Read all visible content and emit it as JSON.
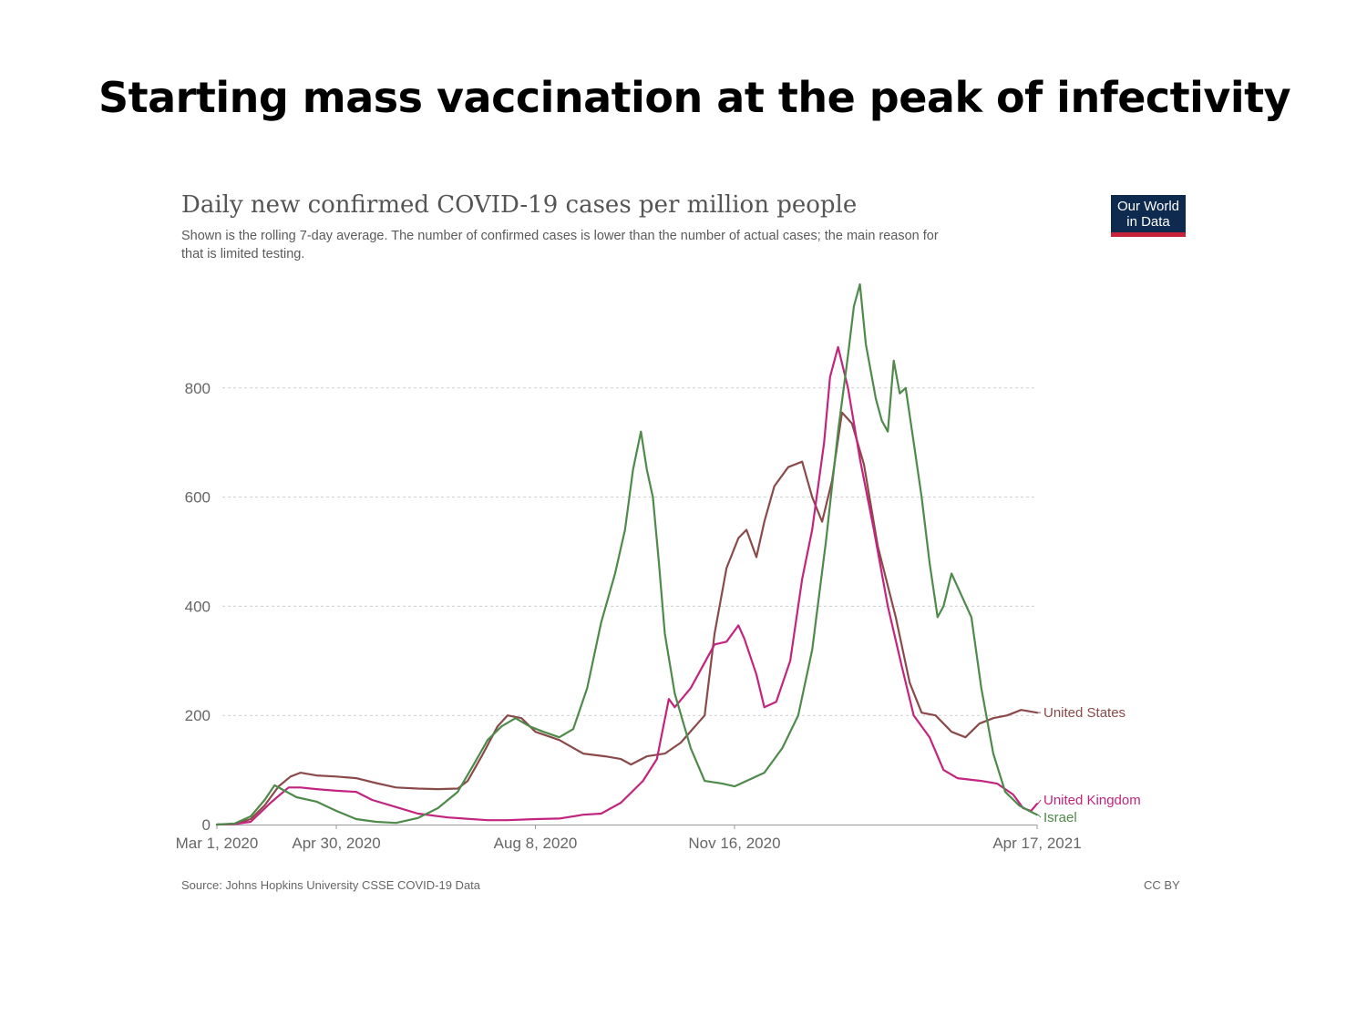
{
  "slide": {
    "title": "Starting mass vaccination at the peak of infectivity"
  },
  "chart_data": {
    "type": "line",
    "title": "Daily new confirmed COVID-19 cases per million people",
    "subtitle_line1": "Shown is the rolling 7-day average. The number of confirmed cases is lower than the number of actual cases; the main reason for",
    "subtitle_line2": "that is limited testing.",
    "source": "Source: Johns Hopkins University CSSE COVID-19 Data",
    "license": "CC BY",
    "logo": [
      "Our World",
      "in Data"
    ],
    "x_ticks": [
      "Mar 1, 2020",
      "Apr 30, 2020",
      "Aug 8, 2020",
      "Nov 16, 2020",
      "Apr 17, 2021"
    ],
    "x_tick_dates": [
      "2020-03-01",
      "2020-04-30",
      "2020-08-08",
      "2020-11-16",
      "2021-04-17"
    ],
    "xlim": [
      "2020-03-01",
      "2021-04-17"
    ],
    "y_ticks": [
      0,
      200,
      400,
      600,
      800
    ],
    "ylim": [
      0,
      1000
    ],
    "grid": true,
    "series": [
      {
        "name": "United States",
        "color": "#8b4a4a",
        "points": [
          [
            "2020-03-01",
            0
          ],
          [
            "2020-03-10",
            1
          ],
          [
            "2020-03-18",
            10
          ],
          [
            "2020-03-25",
            35
          ],
          [
            "2020-04-01",
            70
          ],
          [
            "2020-04-07",
            88
          ],
          [
            "2020-04-12",
            95
          ],
          [
            "2020-04-20",
            90
          ],
          [
            "2020-04-30",
            88
          ],
          [
            "2020-05-10",
            85
          ],
          [
            "2020-05-20",
            76
          ],
          [
            "2020-05-30",
            68
          ],
          [
            "2020-06-10",
            66
          ],
          [
            "2020-06-20",
            65
          ],
          [
            "2020-06-30",
            66
          ],
          [
            "2020-07-05",
            80
          ],
          [
            "2020-07-12",
            125
          ],
          [
            "2020-07-20",
            180
          ],
          [
            "2020-07-25",
            200
          ],
          [
            "2020-08-01",
            195
          ],
          [
            "2020-08-08",
            170
          ],
          [
            "2020-08-20",
            155
          ],
          [
            "2020-09-01",
            130
          ],
          [
            "2020-09-12",
            125
          ],
          [
            "2020-09-20",
            120
          ],
          [
            "2020-09-25",
            110
          ],
          [
            "2020-10-03",
            125
          ],
          [
            "2020-10-12",
            130
          ],
          [
            "2020-10-20",
            150
          ],
          [
            "2020-11-01",
            200
          ],
          [
            "2020-11-06",
            350
          ],
          [
            "2020-11-12",
            470
          ],
          [
            "2020-11-18",
            525
          ],
          [
            "2020-11-22",
            540
          ],
          [
            "2020-11-27",
            490
          ],
          [
            "2020-12-01",
            555
          ],
          [
            "2020-12-06",
            620
          ],
          [
            "2020-12-13",
            655
          ],
          [
            "2020-12-20",
            665
          ],
          [
            "2020-12-25",
            600
          ],
          [
            "2020-12-30",
            555
          ],
          [
            "2021-01-04",
            630
          ],
          [
            "2021-01-09",
            755
          ],
          [
            "2021-01-14",
            735
          ],
          [
            "2021-01-20",
            660
          ],
          [
            "2021-01-27",
            510
          ],
          [
            "2021-02-05",
            380
          ],
          [
            "2021-02-12",
            260
          ],
          [
            "2021-02-18",
            205
          ],
          [
            "2021-02-25",
            200
          ],
          [
            "2021-03-05",
            170
          ],
          [
            "2021-03-12",
            160
          ],
          [
            "2021-03-19",
            185
          ],
          [
            "2021-03-26",
            195
          ],
          [
            "2021-04-02",
            200
          ],
          [
            "2021-04-09",
            210
          ],
          [
            "2021-04-17",
            205
          ]
        ]
      },
      {
        "name": "United Kingdom",
        "color": "#c2247e",
        "points": [
          [
            "2020-03-01",
            0
          ],
          [
            "2020-03-10",
            1
          ],
          [
            "2020-03-18",
            5
          ],
          [
            "2020-03-28",
            40
          ],
          [
            "2020-04-06",
            68
          ],
          [
            "2020-04-12",
            68
          ],
          [
            "2020-04-20",
            65
          ],
          [
            "2020-04-30",
            62
          ],
          [
            "2020-05-10",
            60
          ],
          [
            "2020-05-18",
            45
          ],
          [
            "2020-05-30",
            32
          ],
          [
            "2020-06-10",
            20
          ],
          [
            "2020-06-25",
            13
          ],
          [
            "2020-07-15",
            8
          ],
          [
            "2020-07-25",
            8
          ],
          [
            "2020-08-08",
            10
          ],
          [
            "2020-08-20",
            11
          ],
          [
            "2020-09-01",
            18
          ],
          [
            "2020-09-10",
            20
          ],
          [
            "2020-09-20",
            40
          ],
          [
            "2020-10-01",
            80
          ],
          [
            "2020-10-08",
            120
          ],
          [
            "2020-10-14",
            230
          ],
          [
            "2020-10-17",
            215
          ],
          [
            "2020-10-25",
            250
          ],
          [
            "2020-10-31",
            290
          ],
          [
            "2020-11-06",
            330
          ],
          [
            "2020-11-12",
            335
          ],
          [
            "2020-11-18",
            365
          ],
          [
            "2020-11-21",
            340
          ],
          [
            "2020-11-27",
            275
          ],
          [
            "2020-12-01",
            215
          ],
          [
            "2020-12-07",
            225
          ],
          [
            "2020-12-14",
            300
          ],
          [
            "2020-12-20",
            450
          ],
          [
            "2020-12-25",
            540
          ],
          [
            "2020-12-31",
            700
          ],
          [
            "2021-01-03",
            820
          ],
          [
            "2021-01-07",
            875
          ],
          [
            "2021-01-12",
            800
          ],
          [
            "2021-01-18",
            670
          ],
          [
            "2021-01-25",
            540
          ],
          [
            "2021-02-01",
            400
          ],
          [
            "2021-02-08",
            290
          ],
          [
            "2021-02-14",
            200
          ],
          [
            "2021-02-22",
            160
          ],
          [
            "2021-03-01",
            100
          ],
          [
            "2021-03-08",
            85
          ],
          [
            "2021-03-20",
            80
          ],
          [
            "2021-03-28",
            75
          ],
          [
            "2021-04-05",
            55
          ],
          [
            "2021-04-10",
            30
          ],
          [
            "2021-04-14",
            25
          ],
          [
            "2021-04-17",
            38
          ]
        ]
      },
      {
        "name": "Israel",
        "color": "#4e8a4a",
        "points": [
          [
            "2020-03-01",
            0
          ],
          [
            "2020-03-10",
            2
          ],
          [
            "2020-03-18",
            15
          ],
          [
            "2020-03-25",
            45
          ],
          [
            "2020-03-30",
            72
          ],
          [
            "2020-04-04",
            62
          ],
          [
            "2020-04-10",
            50
          ],
          [
            "2020-04-20",
            42
          ],
          [
            "2020-04-30",
            25
          ],
          [
            "2020-05-10",
            10
          ],
          [
            "2020-05-20",
            5
          ],
          [
            "2020-05-30",
            3
          ],
          [
            "2020-06-10",
            12
          ],
          [
            "2020-06-20",
            30
          ],
          [
            "2020-06-30",
            60
          ],
          [
            "2020-07-08",
            110
          ],
          [
            "2020-07-15",
            155
          ],
          [
            "2020-07-22",
            180
          ],
          [
            "2020-07-29",
            195
          ],
          [
            "2020-08-05",
            180
          ],
          [
            "2020-08-12",
            170
          ],
          [
            "2020-08-20",
            160
          ],
          [
            "2020-08-27",
            175
          ],
          [
            "2020-09-03",
            250
          ],
          [
            "2020-09-10",
            370
          ],
          [
            "2020-09-17",
            460
          ],
          [
            "2020-09-22",
            540
          ],
          [
            "2020-09-26",
            650
          ],
          [
            "2020-09-30",
            720
          ],
          [
            "2020-10-03",
            650
          ],
          [
            "2020-10-06",
            600
          ],
          [
            "2020-10-09",
            480
          ],
          [
            "2020-10-12",
            350
          ],
          [
            "2020-10-17",
            240
          ],
          [
            "2020-10-25",
            140
          ],
          [
            "2020-11-01",
            80
          ],
          [
            "2020-11-10",
            75
          ],
          [
            "2020-11-16",
            70
          ],
          [
            "2020-11-22",
            80
          ],
          [
            "2020-12-01",
            95
          ],
          [
            "2020-12-10",
            140
          ],
          [
            "2020-12-18",
            200
          ],
          [
            "2020-12-25",
            320
          ],
          [
            "2021-01-01",
            520
          ],
          [
            "2021-01-07",
            720
          ],
          [
            "2021-01-12",
            860
          ],
          [
            "2021-01-15",
            950
          ],
          [
            "2021-01-18",
            990
          ],
          [
            "2021-01-21",
            880
          ],
          [
            "2021-01-26",
            780
          ],
          [
            "2021-01-29",
            740
          ],
          [
            "2021-02-01",
            720
          ],
          [
            "2021-02-04",
            850
          ],
          [
            "2021-02-07",
            790
          ],
          [
            "2021-02-10",
            800
          ],
          [
            "2021-02-14",
            700
          ],
          [
            "2021-02-18",
            600
          ],
          [
            "2021-02-22",
            480
          ],
          [
            "2021-02-26",
            380
          ],
          [
            "2021-03-01",
            400
          ],
          [
            "2021-03-05",
            460
          ],
          [
            "2021-03-10",
            420
          ],
          [
            "2021-03-15",
            380
          ],
          [
            "2021-03-20",
            250
          ],
          [
            "2021-03-26",
            130
          ],
          [
            "2021-04-01",
            60
          ],
          [
            "2021-04-08",
            35
          ],
          [
            "2021-04-13",
            25
          ],
          [
            "2021-04-17",
            18
          ]
        ]
      }
    ]
  }
}
